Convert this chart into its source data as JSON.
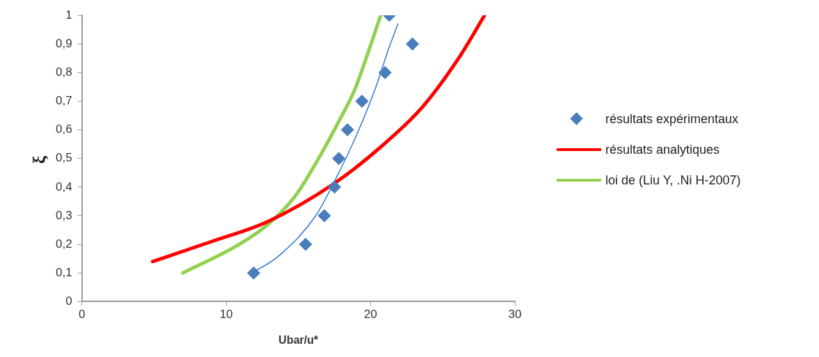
{
  "chart_data": {
    "type": "scatter",
    "xlabel": "Ubar/u*",
    "ylabel": "ξ",
    "xlim": [
      0,
      30
    ],
    "xticks": [
      0,
      10,
      20,
      30
    ],
    "ylim": [
      0,
      1
    ],
    "yticks": [
      0,
      {
        "value": 0.1,
        "label": "0,1"
      },
      {
        "value": 0.2,
        "label": "0,2"
      },
      {
        "value": 0.3,
        "label": "0,3"
      },
      {
        "value": 0.4,
        "label": "0,4"
      },
      {
        "value": 0.5,
        "label": "0,5"
      },
      {
        "value": 0.6,
        "label": "0,6"
      },
      {
        "value": 0.7,
        "label": "0,7"
      },
      {
        "value": 0.8,
        "label": "0,8"
      },
      {
        "value": 0.9,
        "label": "0,9"
      },
      1
    ],
    "grid": false,
    "legend": "right",
    "series": [
      {
        "name": "résultats expérimentaux",
        "marker": "diamond",
        "color": "#4a7ebb",
        "x": [
          11.9,
          15.5,
          16.8,
          17.5,
          17.8,
          18.4,
          19.4,
          21.0,
          22.9,
          21.3
        ],
        "values": [
          0.1,
          0.2,
          0.3,
          0.4,
          0.5,
          0.6,
          0.7,
          0.8,
          0.9,
          1.0
        ]
      },
      {
        "name": "résultats analytiques",
        "type": "line",
        "marker": "none",
        "color": "#ff0000",
        "x": [
          4.9,
          9.0,
          12.9,
          17.4,
          20.7,
          23.6,
          26.1,
          27.9
        ],
        "values": [
          0.14,
          0.21,
          0.28,
          0.41,
          0.54,
          0.68,
          0.85,
          1.0
        ]
      },
      {
        "name": "loi de (Liu Y, .Ni H-2007)",
        "type": "line",
        "marker": "none",
        "color": "#92d050",
        "x": [
          7.0,
          10.9,
          12.9,
          14.8,
          16.4,
          17.7,
          18.9,
          19.9,
          20.7
        ],
        "values": [
          0.1,
          0.2,
          0.27,
          0.37,
          0.5,
          0.62,
          0.74,
          0.88,
          1.0
        ]
      },
      {
        "type": "line",
        "marker": "none",
        "color": "#2e75d6",
        "x": [
          11.8,
          13.65,
          16.2,
          17.7,
          19.1,
          20.3,
          21.3,
          21.9
        ],
        "values": [
          0.1,
          0.16,
          0.3,
          0.44,
          0.59,
          0.74,
          0.89,
          0.97
        ]
      }
    ]
  }
}
